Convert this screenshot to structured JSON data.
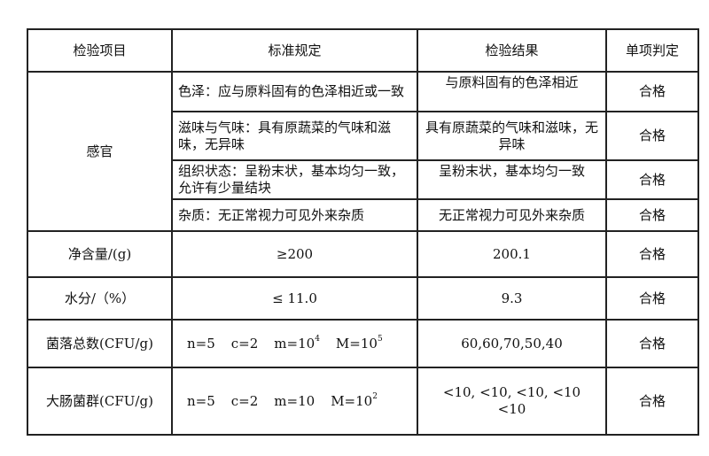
{
  "headers": [
    "检验项目",
    "标准规定",
    "检验结果",
    "单项判定"
  ],
  "sensory": {
    "item": "感官",
    "rows": [
      {
        "standard": "色泽：应与原料固有的色泽相近或一致",
        "result": "与原料固有的色泽相近",
        "verdict": "合格"
      },
      {
        "standard": "滋味与气味：具有原蔬菜的气味和滋味，无异味",
        "result": "具有原蔬菜的气味和滋味，无异味",
        "verdict": "合格"
      },
      {
        "standard": "组织状态：呈粉末状，基本均匀一致，允许有少量结块",
        "result": "呈粉末状，基本均匀一致",
        "verdict": "合格"
      },
      {
        "standard": "杂质：无正常视力可见外来杂质",
        "result": "无正常视力可见外来杂质",
        "verdict": "合格"
      }
    ]
  },
  "net": {
    "item": "净含量/(g)",
    "standard": "≥200",
    "result": "200.1",
    "verdict": "合格"
  },
  "water": {
    "item": "水分/（%）",
    "standard": "≤ 11.0",
    "result": "9.3",
    "verdict": "合格"
  },
  "colony": {
    "item": "菌落总数(CFU/g)",
    "n": "n=5",
    "c": "c=2",
    "m": "m=10",
    "m_exp": "4",
    "M": "M=10",
    "M_exp": "5",
    "result": "60,60,70,50,40",
    "verdict": "合格"
  },
  "coliform": {
    "item": "大肠菌群(CFU/g)",
    "n": "n=5",
    "c": "c=2",
    "m": "m=10",
    "M": "M=10",
    "M_exp": "2",
    "result_line1": "<10, <10, <10, <10",
    "result_line2": "<10",
    "verdict": "合格"
  }
}
